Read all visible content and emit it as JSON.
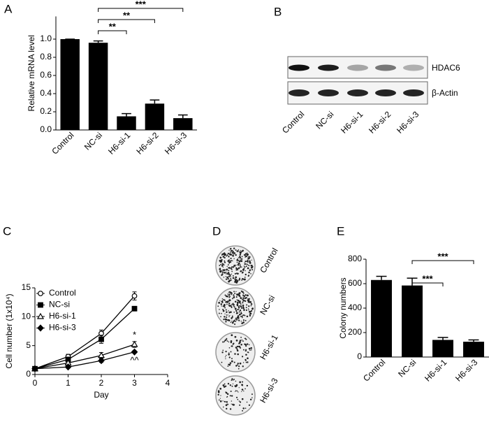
{
  "panel_labels": [
    "A",
    "B",
    "C",
    "D",
    "E"
  ],
  "chart_data": [
    {
      "type": "bar",
      "ylabel": "Relative mRNA level",
      "categories": [
        "Control",
        "NC-si",
        "H6-si-1",
        "H6-si-2",
        "H6-si-3"
      ],
      "values": [
        1.0,
        0.96,
        0.15,
        0.29,
        0.13
      ],
      "errors": [
        0,
        0.02,
        0.03,
        0.04,
        0.035
      ],
      "color": "#000000",
      "ylim": [
        0,
        1.25
      ],
      "yticks": [
        {
          "value": 0,
          "label": "0.0"
        },
        0.2,
        0.4,
        0.6,
        0.8,
        {
          "value": 1,
          "label": "1.0"
        }
      ],
      "annotations": [
        {
          "text": "**",
          "between": [
            "NC-si",
            "H6-si-1"
          ]
        },
        {
          "text": "**",
          "between": [
            "NC-si",
            "H6-si-2"
          ]
        },
        {
          "text": "***",
          "between": [
            "NC-si",
            "H6-si-3"
          ]
        }
      ]
    },
    {
      "type": "line",
      "xlabel": "Day",
      "ylabel": "Cell number (1x10⁴)",
      "x": [
        0,
        1,
        2,
        3
      ],
      "xlim": [
        0,
        4
      ],
      "xticks": [
        0,
        1,
        2,
        3,
        4
      ],
      "ylim": [
        0,
        15
      ],
      "yticks": [
        0,
        5,
        10,
        15
      ],
      "legend": "upper left",
      "series": [
        {
          "name": "Control",
          "color": "#000000",
          "marker": "open-circle",
          "values": [
            1,
            3.1,
            7.1,
            13.6
          ],
          "errors": [
            0.1,
            0.4,
            0.6,
            0.7
          ]
        },
        {
          "name": "NC-si",
          "color": "#000000",
          "marker": "filled-square",
          "values": [
            1,
            2.6,
            6.1,
            11.4
          ],
          "errors": [
            0.1,
            0.4,
            0.7,
            0.4
          ]
        },
        {
          "name": "H6-si-1",
          "color": "#000000",
          "marker": "open-triangle",
          "values": [
            1,
            2.0,
            3.3,
            5.2
          ],
          "errors": [
            0.1,
            0.3,
            0.5,
            0.5
          ]
        },
        {
          "name": "H6-si-3",
          "color": "#000000",
          "marker": "filled-diamond",
          "values": [
            1,
            1.3,
            2.4,
            3.9
          ],
          "errors": [
            0.1,
            0.2,
            0.3,
            0.2
          ]
        }
      ],
      "annotations": [
        {
          "text": "*",
          "series": "H6-si-1",
          "x": 3
        },
        {
          "text": "^^",
          "series": "H6-si-3",
          "x": 3
        }
      ]
    },
    {
      "type": "bar",
      "ylabel": "Colony numbers",
      "categories": [
        "Control",
        "NC-si",
        "H6-si-1",
        "H6-si-3"
      ],
      "values": [
        630,
        585,
        140,
        125
      ],
      "errors": [
        30,
        60,
        20,
        15
      ],
      "color": "#000000",
      "ylim": [
        0,
        800
      ],
      "yticks": [
        0,
        200,
        400,
        600,
        800
      ],
      "annotations": [
        {
          "text": "***",
          "between": [
            "NC-si",
            "H6-si-1"
          ]
        },
        {
          "text": "***",
          "between": [
            "NC-si",
            "H6-si-3"
          ]
        }
      ]
    }
  ],
  "blot": {
    "bands": [
      "HDAC6",
      "β-Actin"
    ],
    "lanes": [
      "Control",
      "NC-si",
      "H6-si-1",
      "H6-si-2",
      "H6-si-3"
    ]
  },
  "colony": {
    "plates": [
      "Control",
      "NC-si",
      "H6-si-1",
      "H6-si-3"
    ]
  }
}
